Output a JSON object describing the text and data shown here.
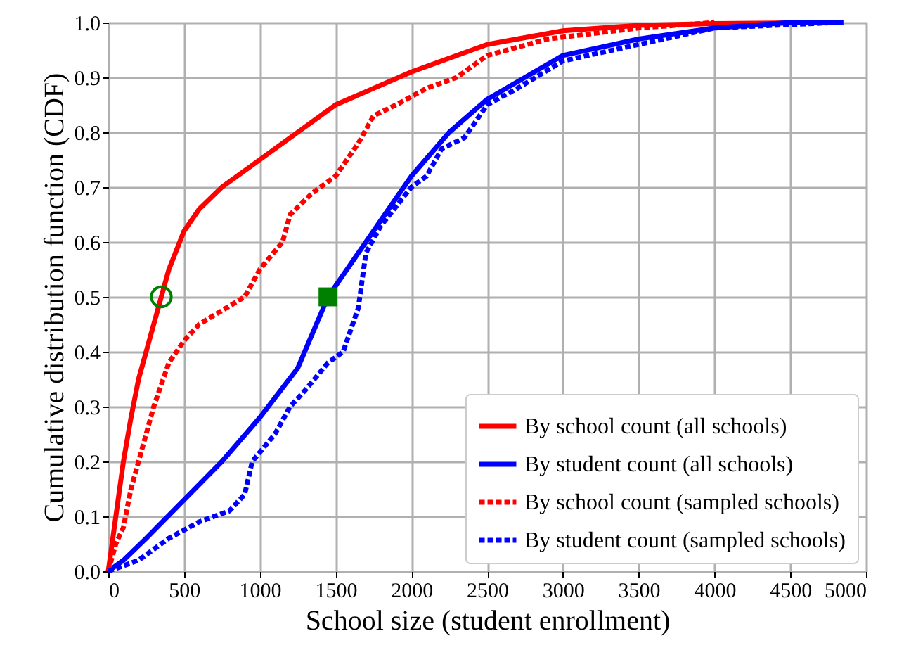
{
  "chart_data": {
    "type": "line",
    "xlabel": "School size (student enrollment)",
    "ylabel": "Cumulative distribution function (CDF)",
    "xlim": [
      0,
      5000
    ],
    "xticks": [
      0,
      500,
      1000,
      1500,
      2000,
      2500,
      3000,
      3500,
      4000,
      4500,
      5000
    ],
    "ylim": [
      0,
      1
    ],
    "yticks": [
      {
        "value": 0,
        "label": "0.0"
      },
      0.1,
      0.2,
      0.3,
      0.4,
      0.5,
      0.6,
      0.7,
      0.8,
      0.9,
      {
        "value": 1,
        "label": "1.0"
      }
    ],
    "grid": true,
    "legend": "bottom right",
    "series": [
      {
        "name": "By school count (all schools)",
        "color": "#ff0000",
        "line_style": "solid",
        "x": [
          0,
          50,
          100,
          150,
          200,
          300,
          350,
          400,
          500,
          600,
          750,
          1000,
          1250,
          1500,
          2000,
          2500,
          3000,
          3500,
          4000,
          4850
        ],
        "values": [
          0,
          0.1,
          0.2,
          0.28,
          0.35,
          0.45,
          0.5,
          0.55,
          0.62,
          0.66,
          0.7,
          0.75,
          0.8,
          0.85,
          0.91,
          0.96,
          0.985,
          0.995,
          0.998,
          1.0
        ]
      },
      {
        "name": "By student count (all schools)",
        "color": "#0000ff",
        "line_style": "solid",
        "x": [
          0,
          100,
          250,
          500,
          750,
          1000,
          1250,
          1450,
          1600,
          1800,
          2000,
          2250,
          2500,
          2750,
          3000,
          3500,
          4000,
          4500,
          4850
        ],
        "values": [
          0,
          0.02,
          0.06,
          0.13,
          0.2,
          0.28,
          0.37,
          0.5,
          0.56,
          0.64,
          0.72,
          0.8,
          0.86,
          0.9,
          0.94,
          0.97,
          0.99,
          1.0,
          1.0
        ]
      },
      {
        "name": "By school count (sampled schools)",
        "color": "#ff0000",
        "line_style": "dashed",
        "x": [
          0,
          50,
          100,
          150,
          200,
          300,
          400,
          500,
          600,
          900,
          1000,
          1150,
          1200,
          1350,
          1500,
          1650,
          1750,
          1900,
          2100,
          2300,
          2500,
          2900,
          3500,
          4000
        ],
        "values": [
          0,
          0.05,
          0.08,
          0.15,
          0.2,
          0.3,
          0.38,
          0.42,
          0.45,
          0.5,
          0.55,
          0.6,
          0.65,
          0.69,
          0.72,
          0.78,
          0.83,
          0.85,
          0.88,
          0.9,
          0.94,
          0.97,
          0.99,
          1.0
        ]
      },
      {
        "name": "By student count (sampled schools)",
        "color": "#0000ff",
        "line_style": "dashed",
        "x": [
          0,
          200,
          400,
          600,
          800,
          900,
          950,
          1100,
          1200,
          1300,
          1450,
          1550,
          1650,
          1700,
          1800,
          2000,
          2100,
          2200,
          2350,
          2500,
          2700,
          3000,
          3500,
          4000,
          4800
        ],
        "values": [
          0,
          0.02,
          0.06,
          0.09,
          0.11,
          0.14,
          0.2,
          0.25,
          0.3,
          0.33,
          0.38,
          0.4,
          0.48,
          0.58,
          0.63,
          0.7,
          0.72,
          0.77,
          0.79,
          0.85,
          0.88,
          0.93,
          0.96,
          0.99,
          1.0
        ]
      },
      {
        "type": "scatter",
        "marker": "circle",
        "color": "#008000",
        "x": [
          350
        ],
        "values": [
          0.5
        ]
      },
      {
        "type": "scatter",
        "marker": "square",
        "color": "#008000",
        "x": [
          1450
        ],
        "values": [
          0.5
        ]
      }
    ]
  }
}
